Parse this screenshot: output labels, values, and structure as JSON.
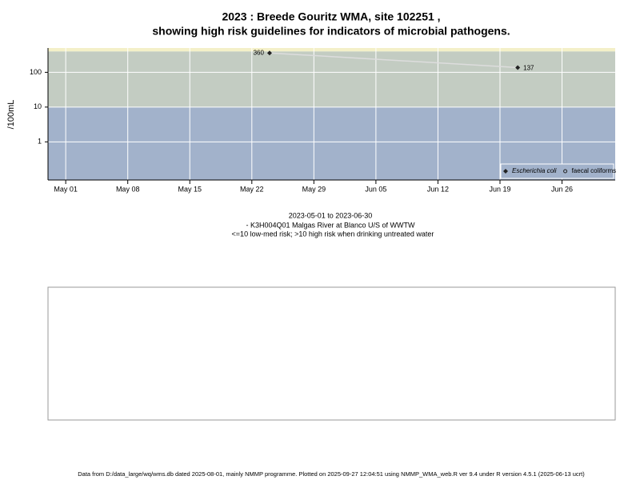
{
  "chart_data": {
    "type": "line",
    "title": [
      "2023 : Breede Gouritz WMA, site 102251 ,",
      "showing high risk guidelines for indicators of microbial pathogens."
    ],
    "subtitle": [
      "2023-05-01 to 2023-06-30",
      "- K3H004Q01 Malgas River at Blanco U/S of WWTW",
      "<=10 low-med risk; >10 high risk when drinking untreated water"
    ],
    "y_label": "/100mL",
    "x": [
      "2023-05-24",
      "2023-06-21"
    ],
    "series": [
      {
        "name": "Escherichia coli",
        "color": "#222222",
        "line_color": "#dddddd",
        "marker": "diamond",
        "values": [
          360,
          137
        ]
      },
      {
        "name": "faecal coliforms",
        "color": "#222222",
        "marker": "circle",
        "values": [
          null,
          null
        ]
      }
    ],
    "xlim": [
      "2023-04-29",
      "2023-07-02"
    ],
    "xticks": [
      {
        "value": "2023-05-01",
        "label": "May 01"
      },
      {
        "value": "2023-05-08",
        "label": "May 08"
      },
      {
        "value": "2023-05-15",
        "label": "May 15"
      },
      {
        "value": "2023-05-22",
        "label": "May 22"
      },
      {
        "value": "2023-05-29",
        "label": "May 29"
      },
      {
        "value": "2023-06-05",
        "label": "Jun 05"
      },
      {
        "value": "2023-06-12",
        "label": "Jun 12"
      },
      {
        "value": "2023-06-19",
        "label": "Jun 19"
      },
      {
        "value": "2023-06-26",
        "label": "Jun 26"
      }
    ],
    "ylim": [
      0.08,
      500
    ],
    "yticks": [
      1,
      10,
      100
    ],
    "log_y": true,
    "grid": true,
    "thresholds": [
      10,
      400
    ],
    "band_colors": [
      "#a2b2cb",
      "#c3ccc2",
      "#f4f0c8"
    ],
    "legend": "bottom-right",
    "footer": "Data from D:/data_large/wq/wms.db dated 2025-08-01, mainly NMMP programme. Plotted on 2025-09-27 12:04:51 using NMMP_WMA_web.R ver 9.4 under R version 4.5.1 (2025-06-13 ucrt)"
  }
}
